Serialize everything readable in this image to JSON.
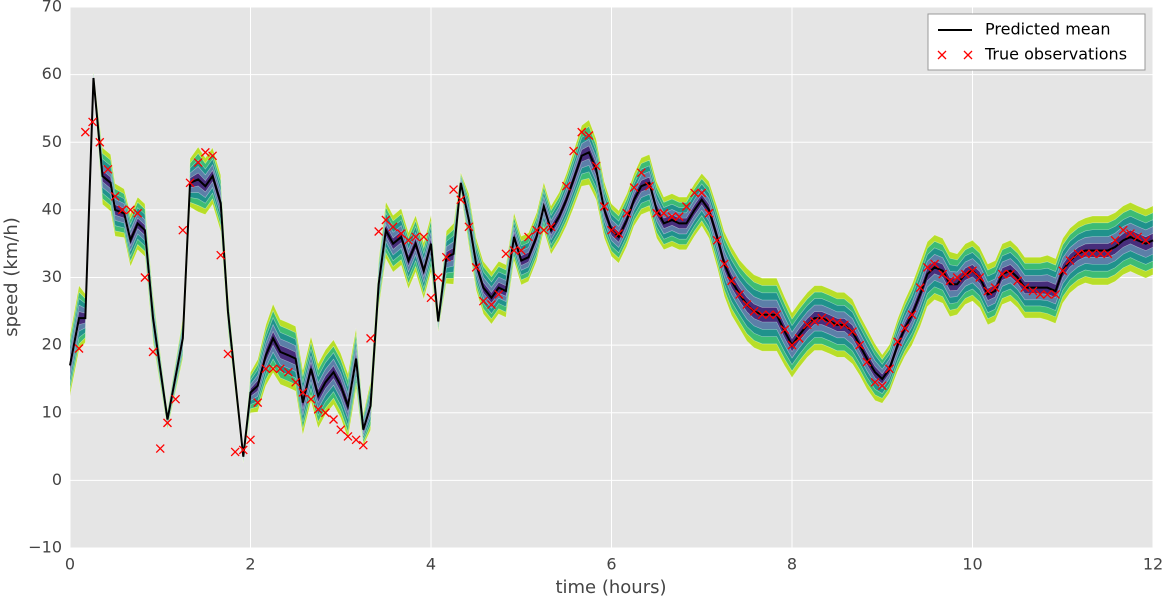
{
  "chart_data": {
    "type": "line",
    "xlabel": "time (hours)",
    "ylabel": "speed (km/h)",
    "xlim": [
      0,
      12
    ],
    "ylim": [
      -10,
      70
    ],
    "xticks": [
      0,
      2,
      4,
      6,
      8,
      10,
      12
    ],
    "yticks": [
      {
        "value": -10,
        "label": "−10"
      },
      0,
      10,
      20,
      30,
      40,
      50,
      60,
      70
    ],
    "grid": true,
    "legend": "upper right",
    "series": [
      {
        "name": "Predicted mean",
        "color": "#000000",
        "style": "line",
        "x": [
          0,
          0.1,
          0.17,
          0.26,
          0.36,
          0.45,
          0.5,
          0.6,
          0.67,
          0.75,
          0.83,
          0.92,
          1.08,
          1.25,
          1.33,
          1.42,
          1.5,
          1.58,
          1.67,
          1.75,
          1.92,
          2.0,
          2.08,
          2.17,
          2.25,
          2.33,
          2.42,
          2.5,
          2.58,
          2.67,
          2.75,
          2.83,
          2.92,
          3.0,
          3.08,
          3.17,
          3.25,
          3.33,
          3.42,
          3.5,
          3.58,
          3.67,
          3.75,
          3.83,
          3.92,
          4.0,
          4.08,
          4.17,
          4.25,
          4.33,
          4.42,
          4.5,
          4.58,
          4.67,
          4.75,
          4.83,
          4.92,
          5.0,
          5.08,
          5.17,
          5.25,
          5.33,
          5.42,
          5.5,
          5.58,
          5.67,
          5.75,
          5.83,
          5.92,
          6.0,
          6.08,
          6.17,
          6.25,
          6.33,
          6.42,
          6.5,
          6.58,
          6.67,
          6.75,
          6.83,
          6.92,
          7.0,
          7.08,
          7.17,
          7.25,
          7.33,
          7.42,
          7.5,
          7.58,
          7.67,
          7.75,
          7.83,
          7.92,
          8.0,
          8.08,
          8.17,
          8.25,
          8.33,
          8.42,
          8.5,
          8.58,
          8.67,
          8.75,
          8.83,
          8.92,
          9.0,
          9.08,
          9.17,
          9.25,
          9.33,
          9.42,
          9.5,
          9.58,
          9.67,
          9.75,
          9.83,
          9.92,
          10.0,
          10.08,
          10.17,
          10.25,
          10.33,
          10.42,
          10.5,
          10.58,
          10.67,
          10.75,
          10.83,
          10.92,
          11.0,
          11.08,
          11.17,
          11.25,
          11.33,
          11.42,
          11.5,
          11.58,
          11.67,
          11.75,
          11.83,
          11.92,
          12.0
        ],
        "values": [
          17,
          24,
          24,
          59.5,
          45,
          44,
          40,
          39.5,
          35.5,
          38,
          37,
          24,
          9,
          21,
          44,
          44.5,
          43.5,
          45,
          41,
          25,
          3.5,
          13,
          14,
          18.5,
          21,
          19,
          18.5,
          18,
          11.5,
          16.5,
          12.5,
          14.5,
          16,
          14,
          11,
          18,
          7.5,
          11,
          29,
          37,
          35,
          36,
          32.5,
          35,
          31,
          35,
          23.5,
          33,
          33.5,
          44,
          38.5,
          32,
          28.5,
          27,
          28.5,
          28,
          36,
          32.5,
          33,
          36,
          40.5,
          37,
          39,
          41.5,
          44.5,
          48,
          48.5,
          46,
          40,
          37,
          36,
          38.5,
          41.5,
          43.5,
          44,
          40,
          38,
          38.5,
          38,
          38,
          40,
          41.5,
          40,
          36,
          32,
          29.5,
          27.5,
          26,
          25,
          24.5,
          24.5,
          24.5,
          22,
          20,
          21.5,
          23,
          24,
          24,
          23.5,
          23,
          23,
          22,
          20,
          18,
          16,
          15,
          16.5,
          20,
          22.5,
          24.5,
          27.5,
          30.5,
          31.5,
          31,
          29,
          29,
          30.5,
          31,
          30,
          27.5,
          28,
          30.5,
          31,
          30,
          28.5,
          28.5,
          28.5,
          28.5,
          28,
          31,
          32.5,
          33.5,
          34,
          34,
          34,
          34,
          34.5,
          35.5,
          36,
          35.5,
          35,
          35.5
        ]
      },
      {
        "name": "True observations",
        "color": "#ff0000",
        "style": "x",
        "x": [
          0.1,
          0.17,
          0.25,
          0.33,
          0.42,
          0.5,
          0.58,
          0.67,
          0.75,
          0.83,
          0.92,
          1.0,
          1.08,
          1.17,
          1.25,
          1.33,
          1.42,
          1.5,
          1.58,
          1.67,
          1.75,
          1.83,
          1.92,
          2.0,
          2.08,
          2.17,
          2.25,
          2.33,
          2.42,
          2.5,
          2.58,
          2.67,
          2.75,
          2.83,
          2.92,
          3.0,
          3.08,
          3.17,
          3.25,
          3.33,
          3.42,
          3.5,
          3.58,
          3.67,
          3.75,
          3.83,
          3.92,
          4.0,
          4.08,
          4.17,
          4.25,
          4.33,
          4.42,
          4.5,
          4.58,
          4.67,
          4.75,
          4.83,
          4.92,
          5.0,
          5.08,
          5.17,
          5.25,
          5.33,
          5.5,
          5.58,
          5.67,
          5.75,
          5.83,
          5.92,
          6.0,
          6.08,
          6.17,
          6.25,
          6.33,
          6.42,
          6.5,
          6.58,
          6.67,
          6.75,
          6.83,
          6.92,
          7.0,
          7.08,
          7.17,
          7.25,
          7.33,
          7.42,
          7.5,
          7.58,
          7.67,
          7.75,
          7.83,
          7.92,
          8.0,
          8.08,
          8.17,
          8.25,
          8.33,
          8.42,
          8.5,
          8.58,
          8.67,
          8.75,
          8.83,
          8.92,
          9.0,
          9.08,
          9.17,
          9.25,
          9.33,
          9.42,
          9.5,
          9.58,
          9.67,
          9.75,
          9.83,
          9.92,
          10.0,
          10.08,
          10.17,
          10.25,
          10.33,
          10.42,
          10.5,
          10.58,
          10.67,
          10.75,
          10.83,
          10.92,
          11.0,
          11.08,
          11.17,
          11.25,
          11.33,
          11.42,
          11.5,
          11.58,
          11.67,
          11.75,
          11.83,
          11.92
        ],
        "values": [
          19.5,
          51.5,
          53,
          50,
          46,
          42,
          40,
          40,
          39.5,
          30,
          19,
          4.7,
          8.5,
          12,
          37,
          44,
          47,
          48.5,
          48,
          33.3,
          18.7,
          4.2,
          4.5,
          6,
          11.5,
          16.5,
          16.5,
          16.5,
          16,
          14.5,
          13,
          12,
          10.5,
          10,
          9,
          7.5,
          6.5,
          6,
          5.2,
          21,
          36.8,
          38.5,
          37.5,
          36.5,
          35.5,
          36,
          36,
          27,
          30,
          33,
          43,
          41.5,
          37.5,
          31.5,
          26.5,
          26,
          27.5,
          33.5,
          34,
          34,
          36,
          37,
          37,
          37.5,
          43.5,
          48.7,
          51.5,
          51,
          46.5,
          40.5,
          37,
          36.5,
          39.5,
          43.3,
          45.5,
          43.5,
          39.5,
          39.5,
          39,
          39,
          40.5,
          42.5,
          42.5,
          39.5,
          35.5,
          32,
          29.5,
          27.5,
          26,
          25,
          24.5,
          24.5,
          24.5,
          22.3,
          20,
          21,
          23,
          23.5,
          24,
          23.5,
          23.3,
          23,
          22,
          20,
          17.5,
          14.5,
          14,
          16.5,
          20.5,
          22.5,
          24.5,
          28.5,
          31.5,
          32,
          30.5,
          29.5,
          30,
          30.5,
          31,
          30,
          28,
          28.5,
          30.5,
          30.5,
          29.5,
          28.5,
          28,
          27.5,
          27.5,
          27.5,
          31,
          32.5,
          33.5,
          33.5,
          33.5,
          33.5,
          33.5,
          35.5,
          37,
          36.5,
          36,
          35.5
        ]
      }
    ],
    "std": [
      1.5,
      1.6,
      1.2,
      0.3,
      1.4,
      1.4,
      1.3,
      1.2,
      1.3,
      1.3,
      1.3,
      1.2,
      0.5,
      1.0,
      1.2,
      1.6,
      1.4,
      1.4,
      1.4,
      1.0,
      0.3,
      1.0,
      1.3,
      1.5,
      1.7,
      1.6,
      1.6,
      1.6,
      1.6,
      1.6,
      1.6,
      1.6,
      1.6,
      1.6,
      1.6,
      1.5,
      0.8,
      1.2,
      1.2,
      1.4,
      1.4,
      1.4,
      1.4,
      1.4,
      1.4,
      1.4,
      0.5,
      1.3,
      1.5,
      0.5,
      1.3,
      1.3,
      1.3,
      1.3,
      1.3,
      1.3,
      1.2,
      1.2,
      1.2,
      1.2,
      1.2,
      1.2,
      1.2,
      1.3,
      1.4,
      1.5,
      1.6,
      1.5,
      1.4,
      1.3,
      1.3,
      1.3,
      1.3,
      1.4,
      1.4,
      1.4,
      1.3,
      1.3,
      1.3,
      1.3,
      1.3,
      1.3,
      1.4,
      1.5,
      1.6,
      1.7,
      1.7,
      1.8,
      1.8,
      1.8,
      1.8,
      1.8,
      1.7,
      1.6,
      1.6,
      1.6,
      1.6,
      1.6,
      1.6,
      1.6,
      1.6,
      1.6,
      1.5,
      1.5,
      1.4,
      1.2,
      1.2,
      1.3,
      1.4,
      1.5,
      1.6,
      1.6,
      1.6,
      1.6,
      1.6,
      1.5,
      1.5,
      1.5,
      1.5,
      1.5,
      1.5,
      1.5,
      1.5,
      1.5,
      1.5,
      1.5,
      1.5,
      1.6,
      1.6,
      1.6,
      1.6,
      1.6,
      1.6,
      1.7,
      1.7,
      1.7,
      1.7,
      1.7,
      1.7,
      1.7,
      1.7,
      1.7
    ],
    "bands": [
      {
        "sigma": 3,
        "color": "#b8de29"
      },
      {
        "sigma": 2.4,
        "color": "#3dbc74"
      },
      {
        "sigma": 1.8,
        "color": "#20928c"
      },
      {
        "sigma": 1.2,
        "color": "#5c7fa8"
      },
      {
        "sigma": 0.6,
        "color": "#472d7b"
      }
    ]
  }
}
